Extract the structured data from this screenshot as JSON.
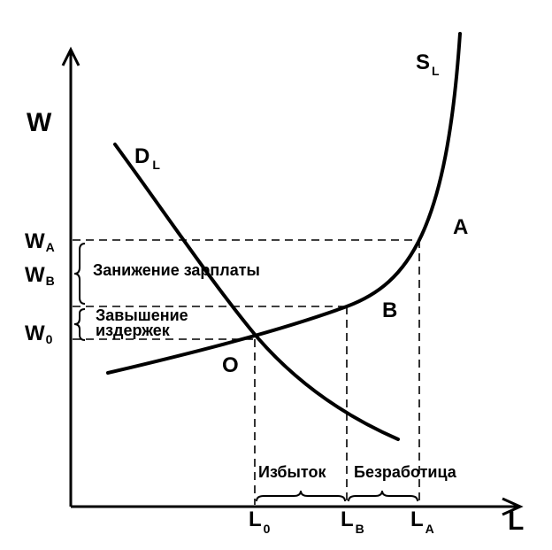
{
  "axes": {
    "y_label": "W",
    "x_label": "L"
  },
  "curves": {
    "supply": {
      "main": "S",
      "sub": "L"
    },
    "demand": {
      "main": "D",
      "sub": "L"
    }
  },
  "points": {
    "A": "A",
    "B": "B",
    "O": "O"
  },
  "wage_levels": {
    "wa": {
      "main": "W",
      "sub": "A"
    },
    "wb": {
      "main": "W",
      "sub": "B"
    },
    "w0": {
      "main": "W",
      "sub": "0"
    }
  },
  "labor_levels": {
    "l0": {
      "main": "L",
      "sub": "0"
    },
    "lb": {
      "main": "L",
      "sub": "B"
    },
    "la": {
      "main": "L",
      "sub": "A"
    }
  },
  "annotations": {
    "wage_understatement": "Занижение зарплаты",
    "cost_overstatement_line1": "Завышение",
    "cost_overstatement_line2": "издержек",
    "surplus": "Избыток",
    "unemployment": "Безработица"
  }
}
